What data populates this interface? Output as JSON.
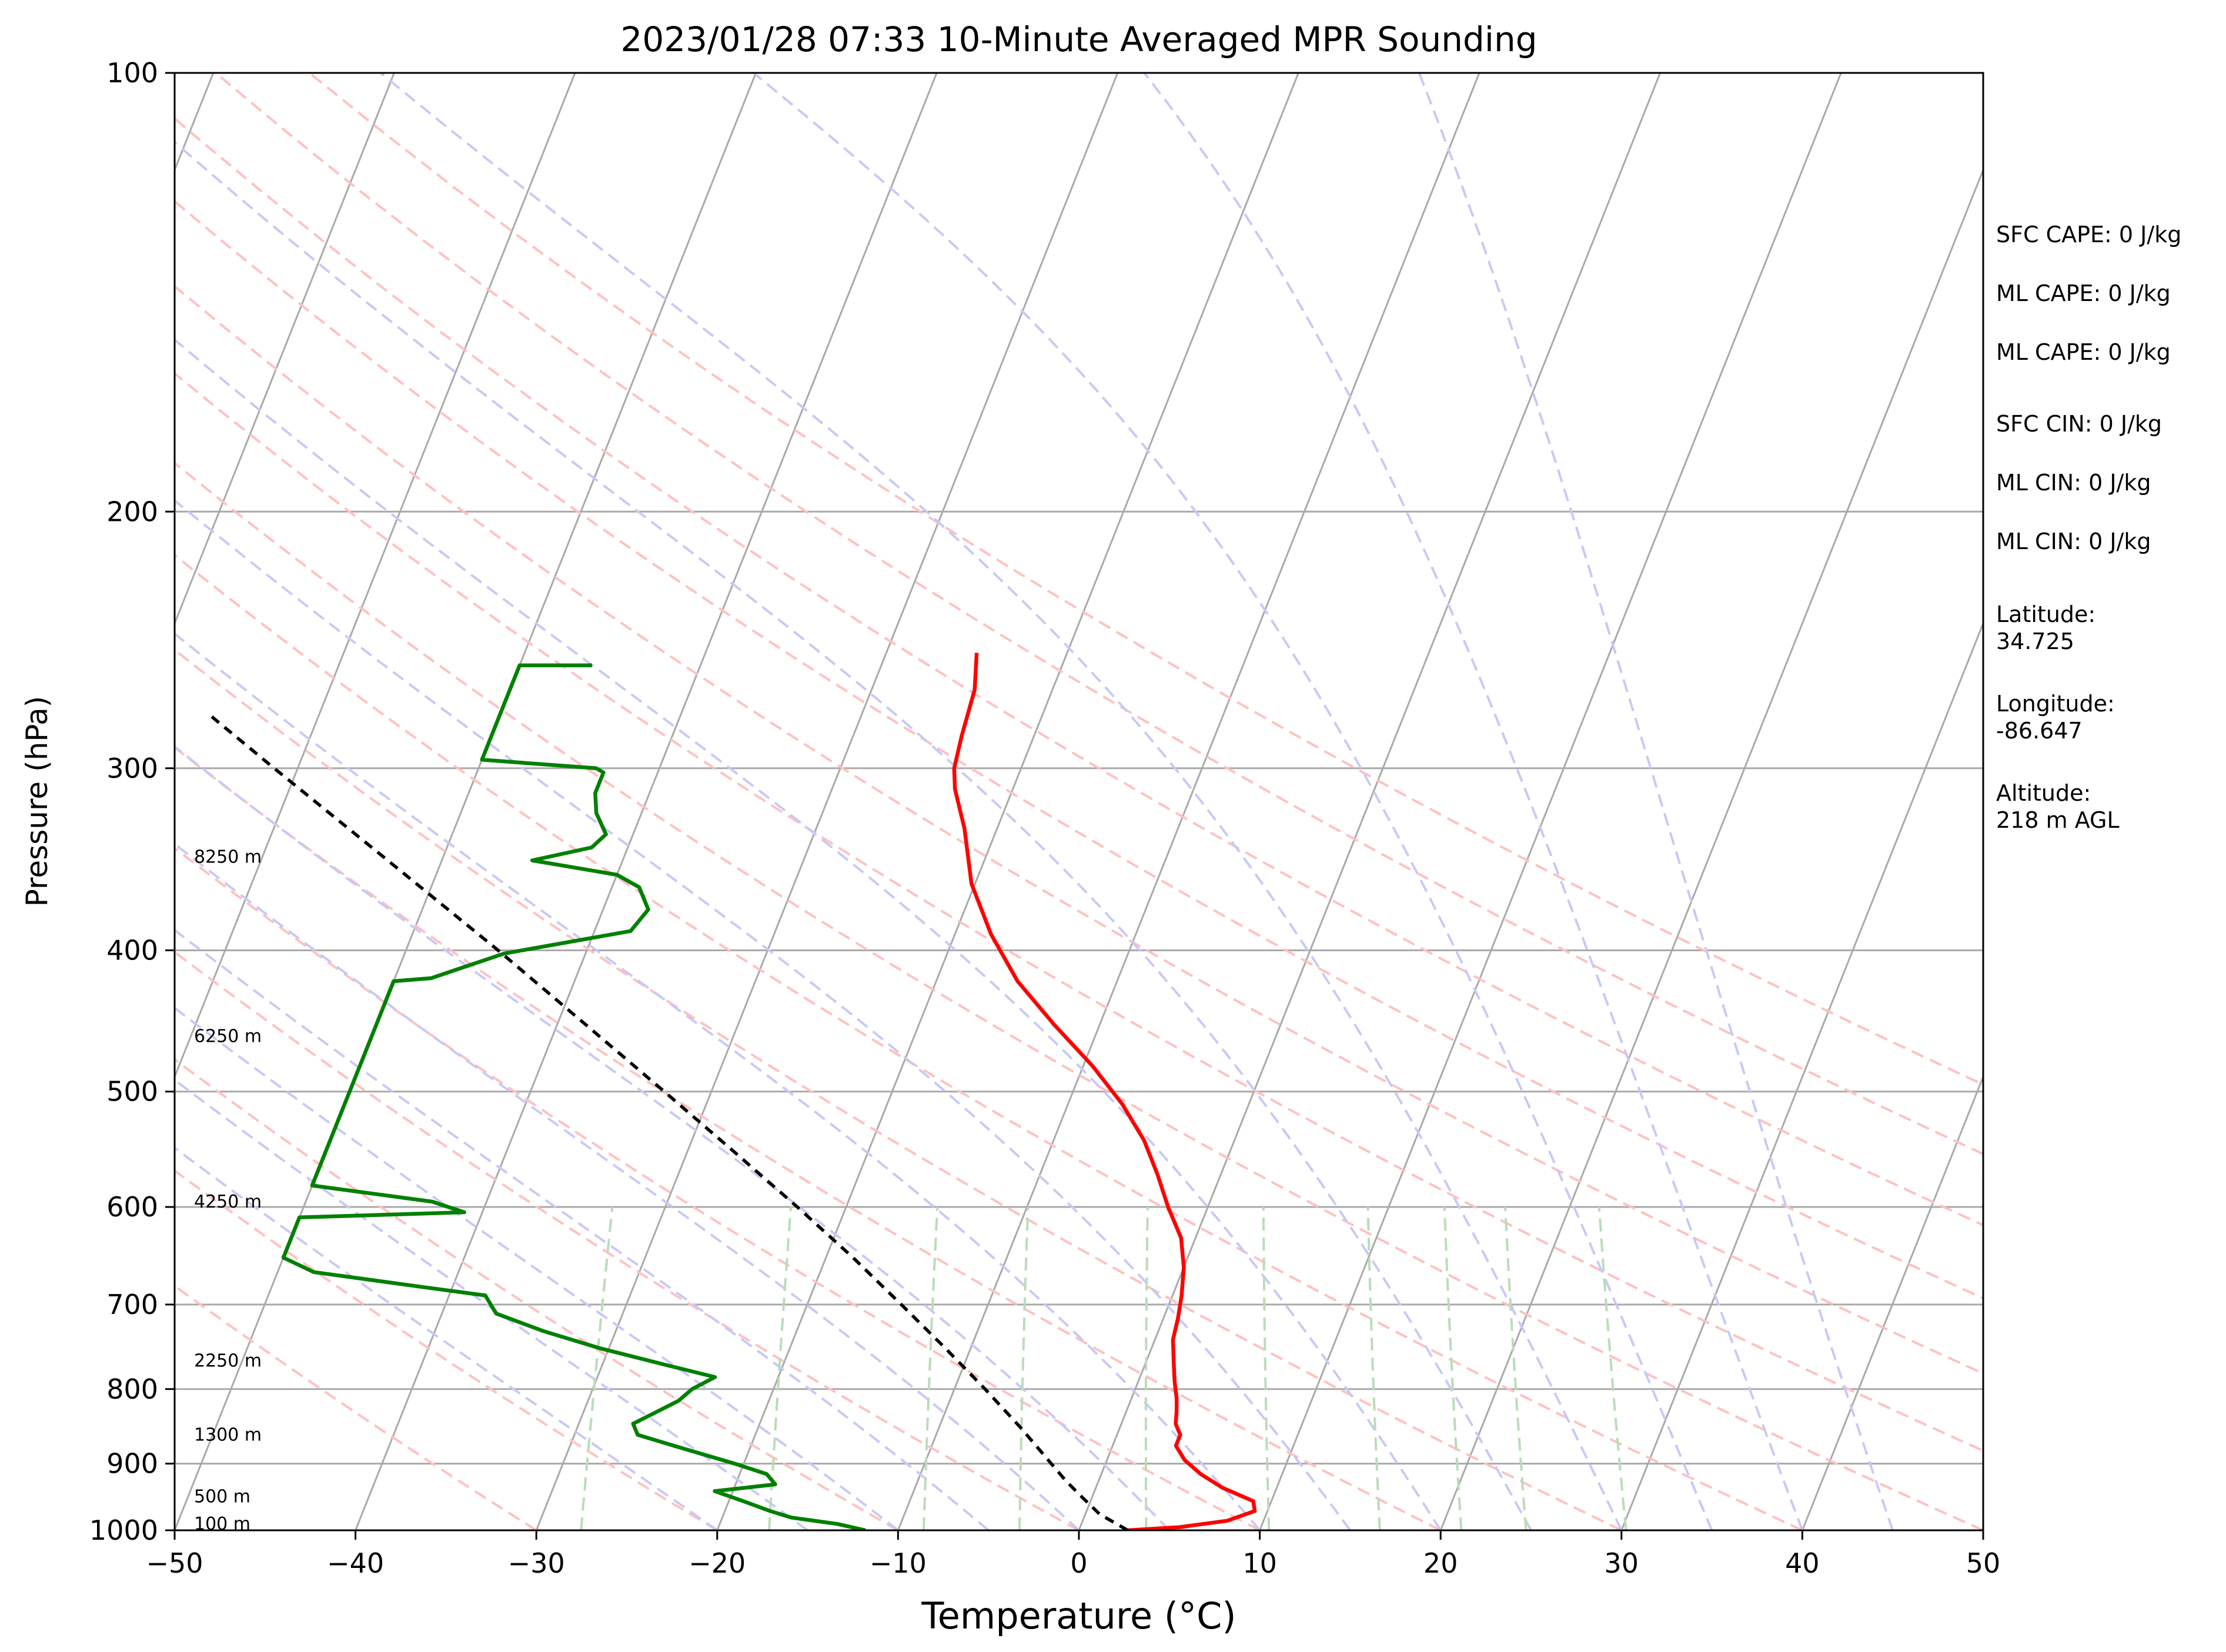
{
  "chart_data": {
    "type": "line",
    "title": "2023/01/28 07:33 10-Minute Averaged MPR Sounding",
    "xlabel": "Temperature (°C)",
    "ylabel": "Pressure (hPa)",
    "xlim": [
      -50,
      50
    ],
    "ylim": [
      1000,
      100
    ],
    "y_scale": "log",
    "grid": true,
    "x_ticks": [
      -50,
      -40,
      -30,
      -20,
      -10,
      0,
      10,
      20,
      30,
      40,
      50
    ],
    "x_tick_labels": [
      "−50",
      "−40",
      "−30",
      "−20",
      "−10",
      "0",
      "10",
      "20",
      "30",
      "40",
      "50"
    ],
    "y_ticks": [
      1000,
      900,
      800,
      700,
      600,
      500,
      400,
      300,
      200,
      100
    ],
    "y_tick_labels": [
      "1000",
      "900",
      "800",
      "700",
      "600",
      "500",
      "400",
      "300",
      "200",
      "100"
    ],
    "series": [
      {
        "key": "temperature",
        "color": "#ff0000",
        "style": "solid",
        "points": [
          [
            1000,
            2.7
          ],
          [
            995,
            5.5
          ],
          [
            985,
            8.0
          ],
          [
            970,
            9.3
          ],
          [
            955,
            9.0
          ],
          [
            935,
            7.0
          ],
          [
            915,
            5.5
          ],
          [
            895,
            4.3
          ],
          [
            875,
            3.5
          ],
          [
            860,
            3.5
          ],
          [
            845,
            3.0
          ],
          [
            830,
            2.8
          ],
          [
            812,
            2.5
          ],
          [
            790,
            2.0
          ],
          [
            765,
            1.5
          ],
          [
            740,
            1.0
          ],
          [
            715,
            0.8
          ],
          [
            690,
            0.5
          ],
          [
            660,
            0.0
          ],
          [
            630,
            -0.8
          ],
          [
            600,
            -2.2
          ],
          [
            570,
            -3.5
          ],
          [
            540,
            -5.0
          ],
          [
            510,
            -7.0
          ],
          [
            480,
            -9.5
          ],
          [
            450,
            -12.5
          ],
          [
            420,
            -15.5
          ],
          [
            390,
            -18.0
          ],
          [
            360,
            -20.2
          ],
          [
            330,
            -21.8
          ],
          [
            310,
            -23.2
          ],
          [
            300,
            -23.7
          ],
          [
            285,
            -24.0
          ],
          [
            265,
            -24.3
          ],
          [
            250,
            -25.0
          ]
        ]
      },
      {
        "key": "dewpoint",
        "color": "#008000",
        "style": "solid",
        "points": [
          [
            1000,
            -11.8
          ],
          [
            990,
            -13.5
          ],
          [
            980,
            -16.2
          ],
          [
            970,
            -17.5
          ],
          [
            955,
            -19.2
          ],
          [
            940,
            -21.0
          ],
          [
            930,
            -17.8
          ],
          [
            915,
            -18.5
          ],
          [
            900,
            -20.5
          ],
          [
            880,
            -23.5
          ],
          [
            860,
            -26.5
          ],
          [
            845,
            -27.0
          ],
          [
            830,
            -26.0
          ],
          [
            815,
            -25.0
          ],
          [
            800,
            -24.5
          ],
          [
            785,
            -23.5
          ],
          [
            770,
            -26.5
          ],
          [
            750,
            -30.5
          ],
          [
            730,
            -34.0
          ],
          [
            710,
            -37.0
          ],
          [
            690,
            -38.0
          ],
          [
            680,
            -42.0
          ],
          [
            665,
            -48.0
          ],
          [
            650,
            -50.0
          ],
          [
            610,
            -50.0
          ],
          [
            605,
            -41.0
          ],
          [
            595,
            -43.0
          ],
          [
            580,
            -50.0
          ],
          [
            420,
            -50.0
          ],
          [
            418,
            -48.0
          ],
          [
            402,
            -44.5
          ],
          [
            388,
            -38.0
          ],
          [
            375,
            -37.5
          ],
          [
            362,
            -38.5
          ],
          [
            355,
            -40.0
          ],
          [
            347,
            -45.0
          ],
          [
            340,
            -42.0
          ],
          [
            333,
            -41.5
          ],
          [
            322,
            -42.5
          ],
          [
            312,
            -43.0
          ],
          [
            302,
            -43.0
          ],
          [
            300,
            -43.5
          ],
          [
            296,
            -50.0
          ],
          [
            255,
            -50.0
          ],
          [
            255,
            -46.0
          ]
        ]
      },
      {
        "key": "parcel-profile",
        "color": "#000000",
        "style": "dashed",
        "points": [
          [
            1000,
            2.7
          ],
          [
            975,
            0.8
          ],
          [
            950,
            -0.5
          ],
          [
            925,
            -1.8
          ],
          [
            900,
            -3.0
          ],
          [
            850,
            -5.5
          ],
          [
            800,
            -8.3
          ],
          [
            750,
            -11.4
          ],
          [
            700,
            -14.8
          ],
          [
            650,
            -18.5
          ],
          [
            600,
            -22.7
          ],
          [
            550,
            -27.4
          ],
          [
            500,
            -32.6
          ],
          [
            450,
            -38.4
          ],
          [
            400,
            -44.9
          ],
          [
            350,
            -52.5
          ],
          [
            300,
            -61.3
          ],
          [
            275,
            -66.2
          ]
        ]
      }
    ],
    "reference_lines": {
      "isotherm_color": "#a9a9a9",
      "dry_adiabat_color": "#ffc0c0",
      "moist_adiabat_color": "#c8c8f8",
      "mixing_ratio_color": "#b8ddb8",
      "isotherm_skew_temps": [
        -120,
        -110,
        -100,
        -90,
        -80,
        -70,
        -60,
        -50,
        -40,
        -30,
        -20,
        -10,
        0,
        10,
        20,
        30,
        40,
        50
      ],
      "dry_adiabat_theta_c": [
        -30,
        -20,
        -10,
        0,
        10,
        20,
        30,
        40,
        50,
        60,
        70,
        80,
        90,
        100,
        110
      ],
      "moist_adiabat_start_c": [
        -20,
        -15,
        -10,
        -5,
        0,
        5,
        10,
        15,
        20,
        25,
        30,
        35,
        40,
        45
      ],
      "mixing_ratio_gkg": [
        0.4,
        1,
        2,
        3,
        5,
        8,
        12,
        16,
        20,
        28
      ]
    },
    "height_labels": [
      {
        "text": "100 m",
        "pressure": 990
      },
      {
        "text": "500 m",
        "pressure": 948
      },
      {
        "text": "1300 m",
        "pressure": 860
      },
      {
        "text": "2250 m",
        "pressure": 765
      },
      {
        "text": "4250 m",
        "pressure": 595
      },
      {
        "text": "6250 m",
        "pressure": 458
      },
      {
        "text": "8250 m",
        "pressure": 345
      }
    ]
  },
  "side_panel": {
    "sfc_cape": "SFC CAPE: 0 J/kg",
    "ml_cape_1": "ML CAPE: 0 J/kg",
    "ml_cape_2": "ML CAPE: 0 J/kg",
    "sfc_cin": "SFC CIN: 0 J/kg",
    "ml_cin_1": "ML CIN: 0 J/kg",
    "ml_cin_2": "ML CIN: 0 J/kg",
    "latitude": "Latitude:\n34.725",
    "longitude": "Longitude:\n-86.647",
    "altitude": "Altitude:\n218 m AGL"
  }
}
